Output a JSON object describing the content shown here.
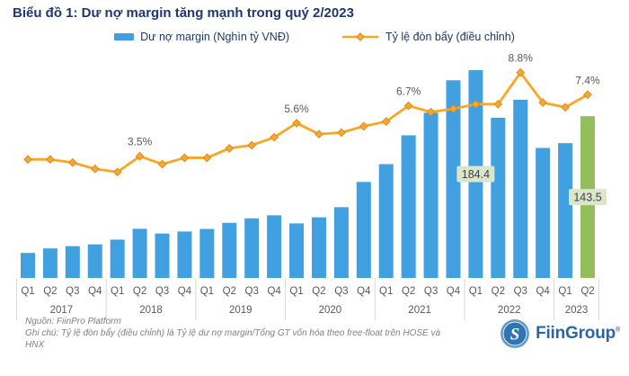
{
  "title": "Biểu đồ 1: Dư nợ margin tăng mạnh trong quý 2/2023",
  "legend": {
    "bar_label": "Dư nợ margin (Nghìn tỷ VNĐ)",
    "line_label": "Tỷ lệ đòn bẩy (điều chỉnh)"
  },
  "chart_data": {
    "type": "bar",
    "subtype": "bar+line combo, dual implicit axes, no gridlines, no value axes shown",
    "years": [
      {
        "year": "2017",
        "quarters": [
          "Q1",
          "Q2",
          "Q3",
          "Q4"
        ]
      },
      {
        "year": "2018",
        "quarters": [
          "Q1",
          "Q2",
          "Q3",
          "Q4"
        ]
      },
      {
        "year": "2019",
        "quarters": [
          "Q1",
          "Q2",
          "Q3",
          "Q4"
        ]
      },
      {
        "year": "2020",
        "quarters": [
          "Q1",
          "Q2",
          "Q3",
          "Q4"
        ]
      },
      {
        "year": "2021",
        "quarters": [
          "Q1",
          "Q2",
          "Q3",
          "Q4"
        ]
      },
      {
        "year": "2022",
        "quarters": [
          "Q1",
          "Q2",
          "Q3",
          "Q4"
        ]
      },
      {
        "year": "2023",
        "quarters": [
          "Q1",
          "Q2"
        ]
      }
    ],
    "series": [
      {
        "name": "Dư nợ margin (Nghìn tỷ VNĐ)",
        "type": "bar",
        "values": [
          22.2,
          26.2,
          28.2,
          29.8,
          34.0,
          43.6,
          39.4,
          41.2,
          43.5,
          48.9,
          52.9,
          55.6,
          48.4,
          53.8,
          62.8,
          85.2,
          101.0,
          126.6,
          146.6,
          175.4,
          184.4,
          142.2,
          158.2,
          115.4,
          119.6,
          143.5
        ],
        "highlight_last_bar": true
      },
      {
        "name": "Tỷ lệ đòn bẩy (điều chỉnh)",
        "type": "line",
        "unit": "%",
        "values": [
          3.3,
          3.3,
          3.1,
          2.7,
          2.5,
          3.5,
          3.0,
          3.4,
          3.4,
          4.0,
          4.2,
          4.7,
          5.6,
          4.9,
          5.0,
          5.4,
          5.7,
          6.7,
          6.3,
          6.5,
          6.8,
          6.8,
          8.8,
          6.9,
          6.6,
          7.4
        ]
      }
    ],
    "annotations": [
      {
        "quarter_index": 5,
        "text": "3.5%"
      },
      {
        "quarter_index": 12,
        "text": "5.6%"
      },
      {
        "quarter_index": 17,
        "text": "6.7%"
      },
      {
        "quarter_index": 22,
        "text": "8.8%"
      },
      {
        "quarter_index": 25,
        "text": "7.4%"
      }
    ],
    "bar_value_labels": [
      {
        "quarter_index": 20,
        "text": "184.4"
      },
      {
        "quarter_index": 25,
        "text": "143.5"
      }
    ],
    "ylim_bar": [
      0,
      190
    ],
    "ylim_line_pct": [
      0,
      9
    ],
    "legend_position": "top-center",
    "grid": false
  },
  "colors": {
    "bar_blue": "#41A0E0",
    "bar_green": "#94BD5B",
    "line_orange": "#F7A823",
    "marker_fill": "#F6A833",
    "marker_stroke": "#E08A1E",
    "label_bg": "#DBE5CC",
    "label_text": "#3F3F3F",
    "axis_text": "#595959",
    "separator": "#D8D8D8",
    "title_navy": "#1F3874",
    "footer_gray": "#808080",
    "logo_blue": "#2A66A8"
  },
  "footer": {
    "source": "Nguồn: FiinPro Platform",
    "note": "Ghi chú: Tỷ lệ đòn bẩy (điều chỉnh) là Tỷ lệ dư nợ margin/Tổng GT vốn hóa theo free-float trên HOSE và HNX"
  },
  "logo": {
    "text": "FiinGroup",
    "mark": "®",
    "icon_letter": "S"
  }
}
